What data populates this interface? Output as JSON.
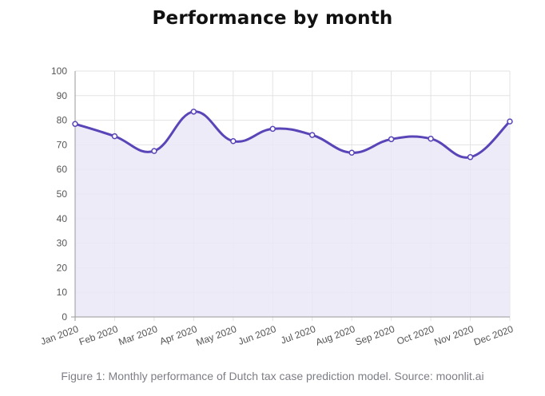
{
  "title": "Performance by month",
  "caption": "Figure 1: Monthly performance of Dutch tax case prediction model. Source: moonlit.ai",
  "chart_data": {
    "type": "area",
    "title": "Performance by month",
    "xlabel": "",
    "ylabel": "",
    "categories": [
      "Jan 2020",
      "Feb 2020",
      "Mar 2020",
      "Apr 2020",
      "May 2020",
      "Jun 2020",
      "Jul 2020",
      "Aug 2020",
      "Sep 2020",
      "Oct 2020",
      "Nov 2020",
      "Dec 2020"
    ],
    "series": [
      {
        "values": [
          78.5,
          73.5,
          67.5,
          83.5,
          71.5,
          76.5,
          74,
          66.8,
          72.3,
          72.5,
          65,
          79.5
        ]
      }
    ],
    "ylim": [
      0,
      100
    ],
    "yticks": [
      0,
      10,
      20,
      30,
      40,
      50,
      60,
      70,
      80,
      90,
      100
    ],
    "grid": true,
    "legend": "none",
    "colors": {
      "line": "#5a45b8",
      "fill": "#ebe8f7",
      "grid": "#e3e3e3",
      "axis": "#9a9a9a"
    }
  }
}
